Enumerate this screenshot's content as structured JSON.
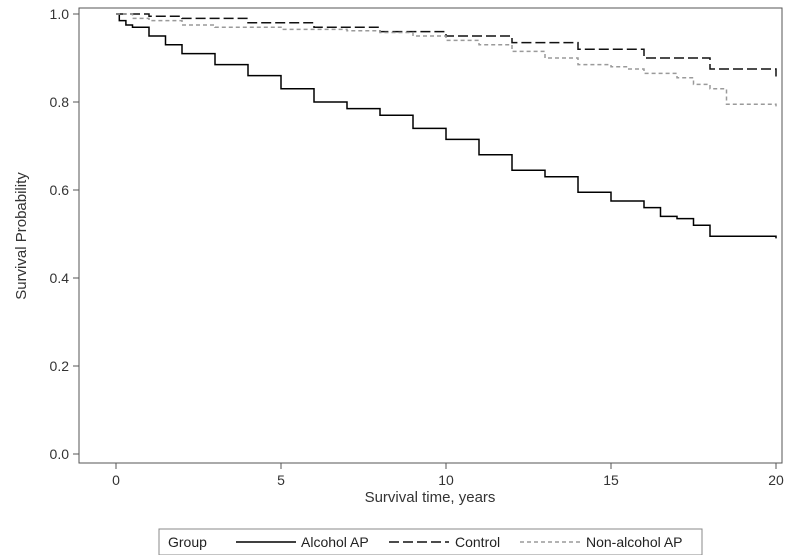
{
  "chart_data": {
    "type": "line",
    "subtype": "kaplan-meier step curves",
    "xlabel": "Survival time, years",
    "ylabel": "Survival Probability",
    "xlim": [
      0,
      20
    ],
    "ylim": [
      0,
      1
    ],
    "x_ticks": [
      0,
      5,
      10,
      15,
      20
    ],
    "y_ticks": [
      0.0,
      0.2,
      0.4,
      0.6,
      0.8,
      1.0
    ],
    "x_tick_labels": [
      "0",
      "5",
      "10",
      "15",
      "20"
    ],
    "y_tick_labels": [
      "0.0",
      "0.2",
      "0.4",
      "0.6",
      "0.8",
      "1.0"
    ],
    "grid": false,
    "legend": {
      "placement": "bottom-center",
      "title": "Group",
      "entries": [
        "Alcohol AP",
        "Control",
        "Non-alcohol AP"
      ]
    },
    "series": [
      {
        "name": "Alcohol AP",
        "style": "solid",
        "color": "#000000",
        "x": [
          0,
          0.1,
          0.3,
          0.5,
          1,
          1.5,
          2,
          3,
          4,
          5,
          6,
          7,
          8,
          9,
          10,
          11,
          12,
          13,
          14,
          15,
          16,
          16.5,
          17,
          17.5,
          18,
          20
        ],
        "y": [
          1.0,
          0.985,
          0.975,
          0.97,
          0.95,
          0.93,
          0.91,
          0.885,
          0.86,
          0.83,
          0.8,
          0.785,
          0.77,
          0.74,
          0.715,
          0.68,
          0.645,
          0.63,
          0.595,
          0.575,
          0.56,
          0.54,
          0.535,
          0.52,
          0.495,
          0.49
        ]
      },
      {
        "name": "Control",
        "style": "long-dash",
        "color": "#111111",
        "x": [
          0,
          1,
          2,
          4,
          6,
          8,
          10,
          12,
          14,
          16,
          18,
          20
        ],
        "y": [
          1.0,
          0.995,
          0.99,
          0.98,
          0.97,
          0.96,
          0.95,
          0.935,
          0.92,
          0.9,
          0.875,
          0.858
        ]
      },
      {
        "name": "Non-alcohol AP",
        "style": "short-dash",
        "color": "#9a9a9a",
        "x": [
          0,
          0.5,
          1,
          2,
          3,
          5,
          7,
          8,
          9,
          10,
          11,
          12,
          13,
          14,
          15,
          15.5,
          16,
          17,
          17.5,
          18,
          18.5,
          20
        ],
        "y": [
          1.0,
          0.99,
          0.985,
          0.975,
          0.97,
          0.965,
          0.962,
          0.958,
          0.95,
          0.94,
          0.93,
          0.915,
          0.9,
          0.885,
          0.88,
          0.875,
          0.865,
          0.855,
          0.84,
          0.83,
          0.795,
          0.79
        ]
      }
    ]
  }
}
